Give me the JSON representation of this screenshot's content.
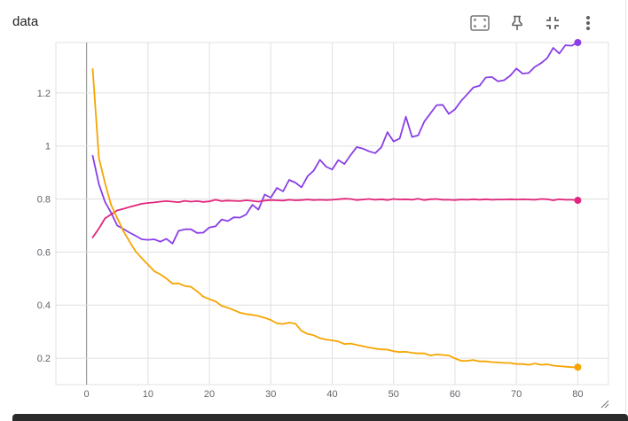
{
  "card": {
    "title": "data"
  },
  "toolbar": {
    "items": [
      {
        "icon": "fit-domain-icon"
      },
      {
        "icon": "pin-icon"
      },
      {
        "icon": "collapse-icon"
      },
      {
        "icon": "more-vert-icon"
      }
    ]
  },
  "colors": {
    "purple": "#8a3fe6",
    "pink": "#e0267d",
    "orange": "#f6a500",
    "grid": "#e0e0e0",
    "axis_text": "#5f6368",
    "zero_line": "#9e9e9e"
  },
  "chart_data": {
    "type": "line",
    "title": "data",
    "xlabel": "",
    "ylabel": "",
    "xlim": [
      -5,
      85
    ],
    "ylim": [
      0.1,
      1.39
    ],
    "x_ticks": [
      "0",
      "10",
      "20",
      "30",
      "40",
      "50",
      "60",
      "70",
      "80"
    ],
    "y_ticks": [
      "0.2",
      "0.4",
      "0.6",
      "0.8",
      "1",
      "1.2"
    ],
    "grid": true,
    "x": [
      1,
      2,
      3,
      4,
      5,
      6,
      7,
      8,
      9,
      10,
      11,
      12,
      13,
      14,
      15,
      16,
      17,
      18,
      19,
      20,
      21,
      22,
      23,
      24,
      25,
      26,
      27,
      28,
      29,
      30,
      31,
      32,
      33,
      34,
      35,
      36,
      37,
      38,
      39,
      40,
      41,
      42,
      43,
      44,
      45,
      46,
      47,
      48,
      49,
      50,
      51,
      52,
      53,
      54,
      55,
      56,
      57,
      58,
      59,
      60,
      61,
      62,
      63,
      64,
      65,
      66,
      67,
      68,
      69,
      70,
      71,
      72,
      73,
      74,
      75,
      76,
      77,
      78,
      79,
      80
    ],
    "series": [
      {
        "color": "#8a3fe6",
        "values": [
          0.963,
          0.856,
          0.789,
          0.748,
          0.7,
          0.687,
          0.673,
          0.661,
          0.648,
          0.646,
          0.648,
          0.639,
          0.65,
          0.632,
          0.68,
          0.686,
          0.686,
          0.672,
          0.673,
          0.693,
          0.697,
          0.723,
          0.717,
          0.731,
          0.73,
          0.742,
          0.778,
          0.76,
          0.817,
          0.805,
          0.842,
          0.829,
          0.872,
          0.862,
          0.844,
          0.886,
          0.907,
          0.948,
          0.922,
          0.911,
          0.947,
          0.932,
          0.966,
          0.996,
          0.99,
          0.98,
          0.973,
          0.995,
          1.052,
          1.017,
          1.028,
          1.11,
          1.034,
          1.04,
          1.092,
          1.123,
          1.154,
          1.155,
          1.121,
          1.138,
          1.17,
          1.195,
          1.221,
          1.227,
          1.258,
          1.26,
          1.244,
          1.248,
          1.265,
          1.292,
          1.273,
          1.275,
          1.298,
          1.312,
          1.331,
          1.37,
          1.349,
          1.38,
          1.378,
          1.39
        ]
      },
      {
        "color": "#e0267d",
        "values": [
          0.655,
          0.689,
          0.727,
          0.742,
          0.757,
          0.763,
          0.77,
          0.776,
          0.782,
          0.785,
          0.787,
          0.79,
          0.792,
          0.79,
          0.788,
          0.793,
          0.79,
          0.792,
          0.789,
          0.791,
          0.797,
          0.792,
          0.794,
          0.793,
          0.792,
          0.795,
          0.793,
          0.79,
          0.794,
          0.796,
          0.795,
          0.794,
          0.797,
          0.795,
          0.796,
          0.798,
          0.796,
          0.797,
          0.796,
          0.797,
          0.799,
          0.801,
          0.8,
          0.796,
          0.798,
          0.8,
          0.797,
          0.799,
          0.796,
          0.8,
          0.798,
          0.799,
          0.797,
          0.801,
          0.796,
          0.799,
          0.8,
          0.797,
          0.797,
          0.796,
          0.798,
          0.797,
          0.799,
          0.797,
          0.799,
          0.797,
          0.798,
          0.798,
          0.799,
          0.798,
          0.799,
          0.798,
          0.797,
          0.8,
          0.799,
          0.795,
          0.799,
          0.797,
          0.797,
          0.795
        ]
      },
      {
        "color": "#f6a500",
        "values": [
          1.29,
          0.955,
          0.86,
          0.777,
          0.728,
          0.679,
          0.639,
          0.602,
          0.577,
          0.553,
          0.528,
          0.516,
          0.5,
          0.481,
          0.482,
          0.472,
          0.469,
          0.452,
          0.432,
          0.422,
          0.414,
          0.397,
          0.39,
          0.381,
          0.371,
          0.366,
          0.363,
          0.359,
          0.352,
          0.344,
          0.331,
          0.329,
          0.334,
          0.33,
          0.303,
          0.291,
          0.286,
          0.275,
          0.27,
          0.267,
          0.263,
          0.253,
          0.255,
          0.25,
          0.245,
          0.24,
          0.236,
          0.233,
          0.232,
          0.226,
          0.223,
          0.224,
          0.22,
          0.218,
          0.218,
          0.21,
          0.214,
          0.212,
          0.21,
          0.199,
          0.19,
          0.19,
          0.193,
          0.188,
          0.188,
          0.185,
          0.184,
          0.182,
          0.182,
          0.178,
          0.178,
          0.175,
          0.18,
          0.175,
          0.177,
          0.172,
          0.17,
          0.168,
          0.166,
          0.166
        ]
      }
    ],
    "end_markers": true
  }
}
